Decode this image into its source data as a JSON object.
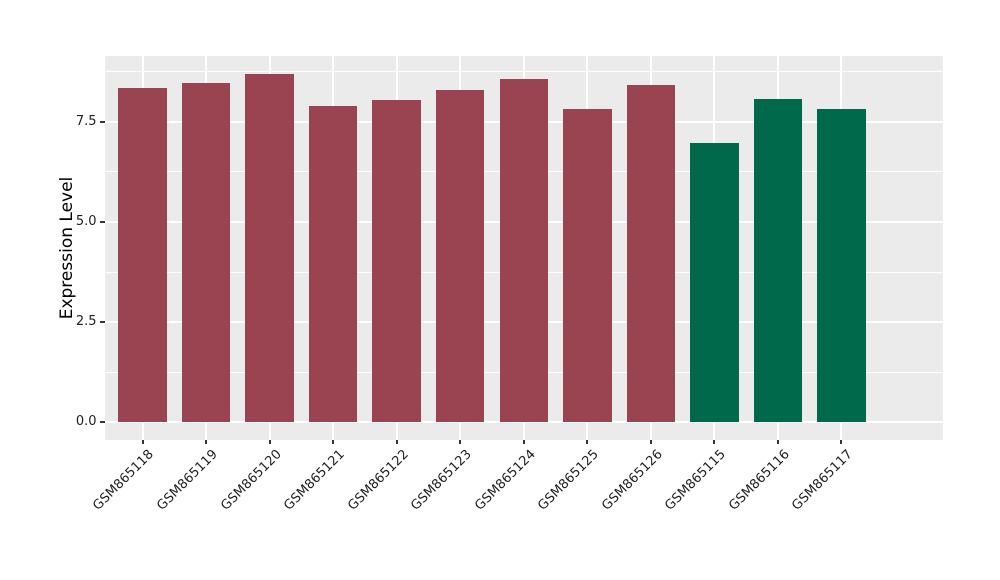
{
  "figure": {
    "kind": "ggplot-style grouped bar chart",
    "background_color": "#FFFFFF",
    "panel_background_color": "#EBEBEB",
    "gridline_color": "#FFFFFF",
    "tick_mark_color": "#333333",
    "axis_text_color": "#1F1F1F"
  },
  "chart_data": {
    "type": "bar",
    "title": "",
    "xlabel": "",
    "ylabel": "Expression Level",
    "categories": [
      "GSM865118",
      "GSM865119",
      "GSM865120",
      "GSM865121",
      "GSM865122",
      "GSM865123",
      "GSM865124",
      "GSM865125",
      "GSM865126",
      "GSM865115",
      "GSM865116",
      "GSM865117"
    ],
    "values": [
      8.33,
      8.47,
      8.69,
      7.89,
      8.05,
      8.29,
      8.56,
      7.81,
      8.41,
      6.97,
      8.06,
      7.82
    ],
    "bar_colors": [
      "#9B4451",
      "#9B4451",
      "#9B4451",
      "#9B4451",
      "#9B4451",
      "#9B4451",
      "#9B4451",
      "#9B4451",
      "#9B4451",
      "#00694B",
      "#00694B",
      "#00694B"
    ],
    "color_groups": {
      "maroon": "#9B4451",
      "green": "#00694B"
    },
    "yticks": [
      0.0,
      2.5,
      5.0,
      7.5
    ],
    "ytick_labels": [
      "0.0",
      "2.5",
      "5.0",
      "7.5"
    ],
    "y_minor_ticks": [
      1.25,
      3.75,
      6.25,
      8.75
    ],
    "ylim": [
      -0.44,
      9.14
    ],
    "grid": "white major+minor horizontal lines, white vertical lines at category centers",
    "legend_position": "none",
    "x_label_rotation_deg": 45
  }
}
